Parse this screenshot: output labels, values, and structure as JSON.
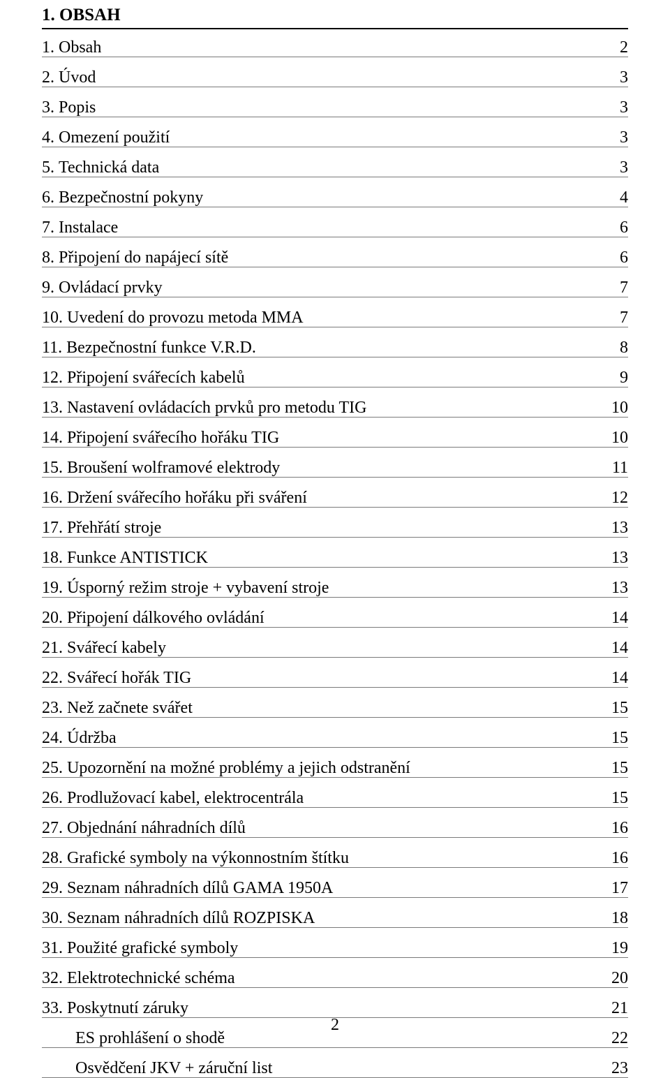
{
  "title": "1. OBSAH",
  "footer_page": "2",
  "colors": {
    "text": "#000000",
    "background": "#ffffff",
    "heading_border": "#000000",
    "row_border": "#7a7a7a"
  },
  "typography": {
    "font_family": "Times New Roman",
    "base_size_pt": 17,
    "heading_weight": "bold"
  },
  "toc": [
    {
      "n": "1.",
      "label": "Obsah",
      "page": "2"
    },
    {
      "n": "2.",
      "label": "Úvod",
      "page": "3"
    },
    {
      "n": "3.",
      "label": "Popis",
      "page": "3"
    },
    {
      "n": "4.",
      "label": "Omezení použití",
      "page": "3"
    },
    {
      "n": "5.",
      "label": "Technická data",
      "page": "3"
    },
    {
      "n": "6.",
      "label": "Bezpečnostní pokyny",
      "page": "4"
    },
    {
      "n": "7.",
      "label": "Instalace",
      "page": "6"
    },
    {
      "n": "8.",
      "label": "Připojení do napájecí sítě",
      "page": "6"
    },
    {
      "n": "9.",
      "label": "Ovládací prvky",
      "page": "7"
    },
    {
      "n": "10.",
      "label": "Uvedení do provozu metoda MMA",
      "page": "7"
    },
    {
      "n": "11.",
      "label": "Bezpečnostní funkce V.R.D.",
      "page": "8"
    },
    {
      "n": "12.",
      "label": "Připojení svářecích kabelů",
      "page": "9"
    },
    {
      "n": "13.",
      "label": "Nastavení ovládacích prvků pro metodu TIG",
      "page": "10"
    },
    {
      "n": "14.",
      "label": "Připojení svářecího hořáku TIG",
      "page": "10"
    },
    {
      "n": "15.",
      "label": "Broušení wolframové elektrody",
      "page": "11"
    },
    {
      "n": "16.",
      "label": "Držení svářecího hořáku při sváření",
      "page": "12"
    },
    {
      "n": "17.",
      "label": "Přehřátí stroje",
      "page": "13"
    },
    {
      "n": "18.",
      "label": "Funkce ANTISTICK",
      "page": "13"
    },
    {
      "n": "19.",
      "label": "Úsporný režim stroje + vybavení stroje",
      "page": "13"
    },
    {
      "n": "20.",
      "label": "Připojení dálkového ovládání",
      "page": "14"
    },
    {
      "n": "21.",
      "label": "Svářecí kabely",
      "page": "14"
    },
    {
      "n": "22.",
      "label": "Svářecí hořák TIG",
      "page": "14"
    },
    {
      "n": "23.",
      "label": "Než začnete svářet",
      "page": "15"
    },
    {
      "n": "24.",
      "label": "Údržba",
      "page": "15"
    },
    {
      "n": "25.",
      "label": "Upozornění na možné problémy a jejich odstranění",
      "page": "15"
    },
    {
      "n": "26.",
      "label": "Prodlužovací kabel, elektrocentrála",
      "page": "15"
    },
    {
      "n": "27.",
      "label": "Objednání náhradních dílů",
      "page": "16"
    },
    {
      "n": "28.",
      "label": "Grafické symboly na výkonnostním štítku",
      "page": "16"
    },
    {
      "n": "29.",
      "label": "Seznam náhradních dílů GAMA 1950A",
      "page": "17"
    },
    {
      "n": "30.",
      "label": "Seznam náhradních dílů ROZPISKA",
      "page": "18"
    },
    {
      "n": "31.",
      "label": "Použité grafické symboly",
      "page": "19"
    },
    {
      "n": "32.",
      "label": "Elektrotechnické schéma",
      "page": "20"
    },
    {
      "n": "33.",
      "label": "Poskytnutí záruky",
      "page": "21"
    },
    {
      "n": "",
      "label": "ES prohlášení o shodě",
      "page": "22",
      "indent": true
    },
    {
      "n": "",
      "label": "Osvědčení JKV + záruční list",
      "page": "23",
      "indent": true
    }
  ]
}
